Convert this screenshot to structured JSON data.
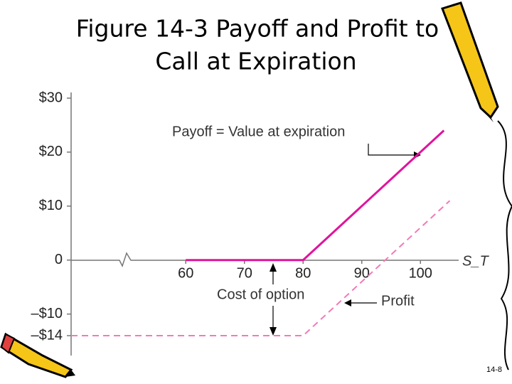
{
  "chart_data": {
    "type": "line",
    "title_lines": [
      "Figure 14-3 Payoff and Profit to",
      "Call at Expiration"
    ],
    "x_label": "S_T",
    "annotations": [
      "Payoff = Value at expiration",
      "Cost of option",
      "Profit"
    ],
    "page_number": "14-8",
    "xlim": [
      55,
      107
    ],
    "xticks": [
      60,
      70,
      80,
      90,
      100
    ],
    "ylim": [
      -14,
      31
    ],
    "yticks": [
      {
        "value": 30,
        "label": "$30"
      },
      {
        "value": 20,
        "label": "$20"
      },
      {
        "value": 10,
        "label": "$10"
      },
      0,
      {
        "value": -10,
        "label": "–$10"
      },
      {
        "value": -14,
        "label": "–$14"
      }
    ],
    "series": [
      {
        "name": "Payoff",
        "color": "#e0149c",
        "dashed": false,
        "x": [
          60,
          80,
          104
        ],
        "values": [
          0,
          0,
          24
        ]
      },
      {
        "name": "Profit",
        "color": "#f27ab8",
        "dashed": true,
        "x": [
          55,
          80,
          105
        ],
        "values": [
          -14,
          -14,
          11
        ]
      }
    ]
  }
}
